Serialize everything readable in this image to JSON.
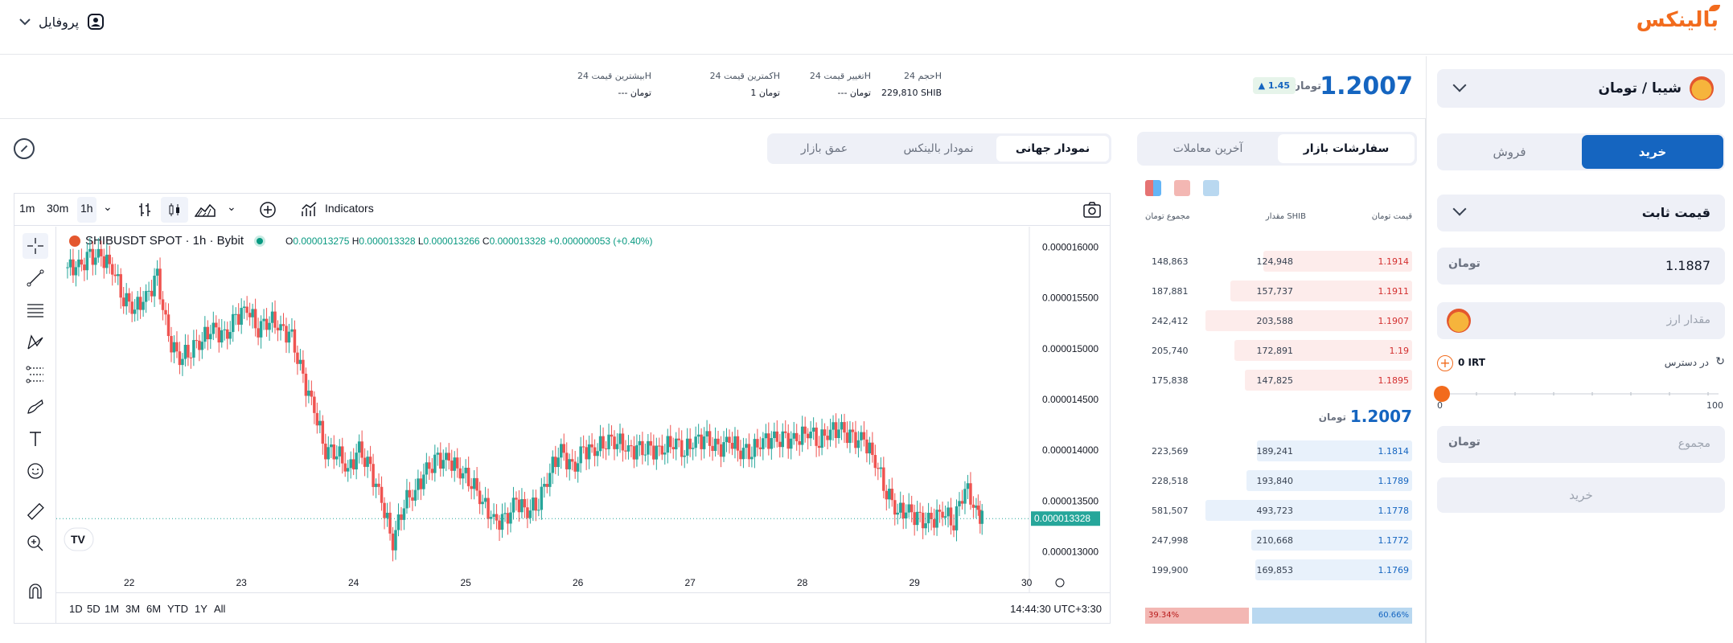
{
  "header": {
    "logo": "بالینکس",
    "profile_label": "پروفایل"
  },
  "market": {
    "last_price": "1.2007",
    "unit": "تومان",
    "change": "1.45",
    "stats": [
      {
        "label": "حجم 24H",
        "value": "229,810 SHIB"
      },
      {
        "label": "تغییر قیمت 24H",
        "value": "--- تومان"
      },
      {
        "label": "کمترین قیمت 24H",
        "value": "1 تومان"
      },
      {
        "label": "بیشترین قیمت 24H",
        "value": "--- تومان"
      }
    ]
  },
  "order_form": {
    "pair": "شیبا / تومان",
    "buy_tab": "خرید",
    "sell_tab": "فروش",
    "order_type": "قیمت ثابت",
    "price_value": "1.1887",
    "price_unit": "تومان",
    "amount_placeholder": "مقدار ارز",
    "available_label": "در دسترس",
    "available_amount": "0 IRT",
    "slider_min": "0",
    "slider_max": "100",
    "slider_value": 0,
    "total_placeholder": "مجموع",
    "total_unit": "تومان",
    "submit": "خرید"
  },
  "order_book": {
    "tab_active": "سفارشات بازار",
    "tab_other": "آخرین معاملات",
    "col_price": "قیمت تومان",
    "col_amount": "مقدار SHIB",
    "col_total": "مجموع تومان",
    "asks": [
      {
        "price": "1.1914",
        "amount": "124,948",
        "total": "148,863",
        "depth": 0.72
      },
      {
        "price": "1.1911",
        "amount": "157,737",
        "total": "187,881",
        "depth": 0.88
      },
      {
        "price": "1.1907",
        "amount": "203,588",
        "total": "242,412",
        "depth": 1.0
      },
      {
        "price": "1.19",
        "amount": "172,891",
        "total": "205,740",
        "depth": 0.86
      },
      {
        "price": "1.1895",
        "amount": "147,825",
        "total": "175,838",
        "depth": 0.81
      }
    ],
    "mid_price": "1.2007",
    "mid_unit": "تومان",
    "bids": [
      {
        "price": "1.1814",
        "amount": "189,241",
        "total": "223,569",
        "depth": 0.75
      },
      {
        "price": "1.1789",
        "amount": "193,840",
        "total": "228,518",
        "depth": 0.8
      },
      {
        "price": "1.1778",
        "amount": "493,723",
        "total": "581,507",
        "depth": 1.0
      },
      {
        "price": "1.1772",
        "amount": "210,668",
        "total": "247,998",
        "depth": 0.78
      },
      {
        "price": "1.1769",
        "amount": "169,853",
        "total": "199,900",
        "depth": 0.76
      }
    ],
    "sell_ratio": "39.34%",
    "buy_ratio": "60.66%",
    "sell_ratio_value": 39.34
  },
  "chart_tabs": {
    "global": "نمودار جهانی",
    "balinex": "نمودار بالینکس",
    "depth": "عمق بازار"
  },
  "tv": {
    "intervals": [
      "1m",
      "30m",
      "1h"
    ],
    "indicators": "Indicators",
    "symbol": "SHIBUSDT SPOT · 1h · Bybit",
    "ohlc": {
      "o": "0.000013275",
      "h": "0.000013328",
      "l": "0.000013266",
      "c": "0.000013328",
      "chg": "+0.000000053 (+0.40%)"
    },
    "ranges": [
      "1D",
      "5D",
      "1M",
      "3M",
      "6M",
      "YTD",
      "1Y",
      "All"
    ],
    "clock": "14:44:30 UTC+3:30",
    "last_label": "0.000013328",
    "colors": {
      "up": "#26a69a",
      "down": "#ef5350"
    }
  },
  "chart_data": {
    "type": "candlestick",
    "xlabel": "",
    "ylabel": "",
    "x_ticks": [
      "22",
      "23",
      "24",
      "25",
      "26",
      "27",
      "28",
      "29",
      "30"
    ],
    "y_ticks": [
      "0.000016000",
      "0.000015500",
      "0.000015000",
      "0.000014500",
      "0.000014000",
      "0.000013500",
      "0.000013000"
    ],
    "ylim": [
      1.28e-05,
      1.62e-05
    ],
    "close_path": [
      [
        21.45,
        1.58e-05
      ],
      [
        21.55,
        1.58e-05
      ],
      [
        21.65,
        1.59e-05
      ],
      [
        21.75,
        1.59e-05
      ],
      [
        21.85,
        1.58e-05
      ],
      [
        21.95,
        1.55e-05
      ],
      [
        22.05,
        1.54e-05
      ],
      [
        22.15,
        1.55e-05
      ],
      [
        22.25,
        1.57e-05
      ],
      [
        22.35,
        1.51e-05
      ],
      [
        22.45,
        1.49e-05
      ],
      [
        22.55,
        1.5e-05
      ],
      [
        22.65,
        1.51e-05
      ],
      [
        22.75,
        1.52e-05
      ],
      [
        22.85,
        1.51e-05
      ],
      [
        22.95,
        1.53e-05
      ],
      [
        23.05,
        1.54e-05
      ],
      [
        23.15,
        1.52e-05
      ],
      [
        23.25,
        1.53e-05
      ],
      [
        23.35,
        1.52e-05
      ],
      [
        23.45,
        1.51e-05
      ],
      [
        23.55,
        1.47e-05
      ],
      [
        23.65,
        1.44e-05
      ],
      [
        23.75,
        1.4e-05
      ],
      [
        23.85,
        1.4e-05
      ],
      [
        23.95,
        1.38e-05
      ],
      [
        24.05,
        1.4e-05
      ],
      [
        24.15,
        1.38e-05
      ],
      [
        24.25,
        1.35e-05
      ],
      [
        24.35,
        1.31e-05
      ],
      [
        24.45,
        1.35e-05
      ],
      [
        24.55,
        1.36e-05
      ],
      [
        24.65,
        1.38e-05
      ],
      [
        24.75,
        1.39e-05
      ],
      [
        24.85,
        1.39e-05
      ],
      [
        24.95,
        1.38e-05
      ],
      [
        25.05,
        1.37e-05
      ],
      [
        25.15,
        1.35e-05
      ],
      [
        25.25,
        1.33e-05
      ],
      [
        25.35,
        1.33e-05
      ],
      [
        25.45,
        1.35e-05
      ],
      [
        25.55,
        1.34e-05
      ],
      [
        25.65,
        1.35e-05
      ],
      [
        25.75,
        1.38e-05
      ],
      [
        25.85,
        1.4e-05
      ],
      [
        25.95,
        1.38e-05
      ],
      [
        26.05,
        1.4e-05
      ],
      [
        26.15,
        1.4e-05
      ],
      [
        26.25,
        1.41e-05
      ],
      [
        26.35,
        1.41e-05
      ],
      [
        26.45,
        1.4e-05
      ],
      [
        26.55,
        1.4e-05
      ],
      [
        26.65,
        1.4e-05
      ],
      [
        26.75,
        1.4e-05
      ],
      [
        26.85,
        1.41e-05
      ],
      [
        26.95,
        1.4e-05
      ],
      [
        27.05,
        1.41e-05
      ],
      [
        27.15,
        1.41e-05
      ],
      [
        27.25,
        1.4e-05
      ],
      [
        27.35,
        1.41e-05
      ],
      [
        27.45,
        1.4e-05
      ],
      [
        27.55,
        1.4e-05
      ],
      [
        27.65,
        1.41e-05
      ],
      [
        27.75,
        1.41e-05
      ],
      [
        27.85,
        1.41e-05
      ],
      [
        27.95,
        1.41e-05
      ],
      [
        28.05,
        1.42e-05
      ],
      [
        28.15,
        1.41e-05
      ],
      [
        28.25,
        1.42e-05
      ],
      [
        28.35,
        1.42e-05
      ],
      [
        28.45,
        1.41e-05
      ],
      [
        28.55,
        1.41e-05
      ],
      [
        28.65,
        1.39e-05
      ],
      [
        28.75,
        1.36e-05
      ],
      [
        28.85,
        1.34e-05
      ],
      [
        28.95,
        1.34e-05
      ],
      [
        29.05,
        1.33e-05
      ],
      [
        29.15,
        1.33e-05
      ],
      [
        29.25,
        1.34e-05
      ],
      [
        29.35,
        1.33e-05
      ],
      [
        29.45,
        1.365e-05
      ],
      [
        29.55,
        1.34e-05
      ],
      [
        29.62,
        1.333e-05
      ]
    ]
  }
}
